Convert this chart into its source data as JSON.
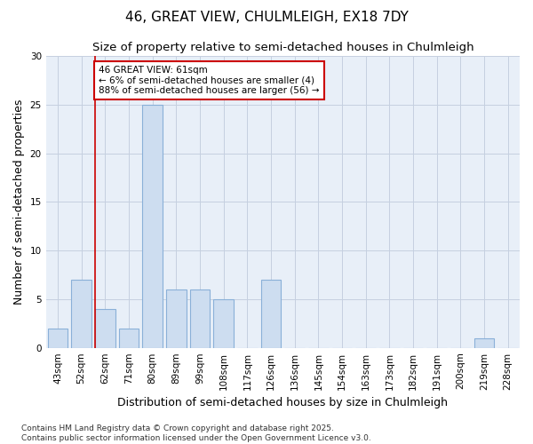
{
  "title": "46, GREAT VIEW, CHULMLEIGH, EX18 7DY",
  "subtitle": "Size of property relative to semi-detached houses in Chulmleigh",
  "xlabel": "Distribution of semi-detached houses by size in Chulmleigh",
  "ylabel": "Number of semi-detached properties",
  "categories": [
    "43sqm",
    "52sqm",
    "62sqm",
    "71sqm",
    "80sqm",
    "89sqm",
    "99sqm",
    "108sqm",
    "117sqm",
    "126sqm",
    "136sqm",
    "145sqm",
    "154sqm",
    "163sqm",
    "173sqm",
    "182sqm",
    "191sqm",
    "200sqm",
    "219sqm",
    "228sqm"
  ],
  "values": [
    2,
    7,
    4,
    2,
    25,
    6,
    6,
    5,
    0,
    7,
    0,
    0,
    0,
    0,
    0,
    0,
    0,
    0,
    1,
    0
  ],
  "bar_color": "#cdddf0",
  "bar_edge_color": "#8ab0d8",
  "vline_index": 2,
  "vline_color": "#cc0000",
  "annotation_text": "46 GREAT VIEW: 61sqm\n← 6% of semi-detached houses are smaller (4)\n88% of semi-detached houses are larger (56) →",
  "annotation_box_facecolor": "#ffffff",
  "annotation_box_edgecolor": "#cc0000",
  "ylim": [
    0,
    30
  ],
  "yticks": [
    0,
    5,
    10,
    15,
    20,
    25,
    30
  ],
  "footnote": "Contains HM Land Registry data © Crown copyright and database right 2025.\nContains public sector information licensed under the Open Government Licence v3.0.",
  "bg_color": "#e8eff8",
  "grid_color": "#c5d0e0",
  "title_fontsize": 11,
  "subtitle_fontsize": 9.5,
  "axis_label_fontsize": 9,
  "tick_fontsize": 7.5,
  "annotation_fontsize": 7.5,
  "footnote_fontsize": 6.5
}
